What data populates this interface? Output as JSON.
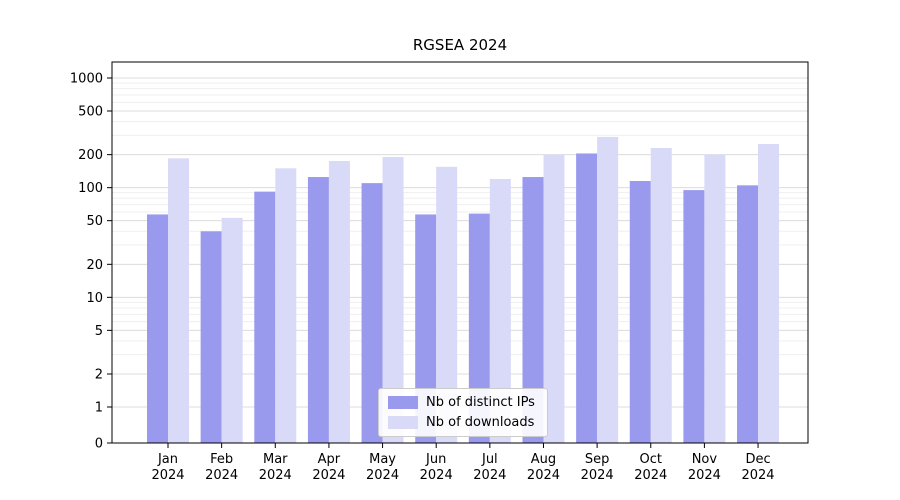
{
  "chart_data": {
    "type": "bar",
    "title": "RGSEA 2024",
    "yscale": "log",
    "ylim": [
      0,
      1400
    ],
    "yticks": [
      0,
      1,
      2,
      5,
      10,
      20,
      50,
      100,
      200,
      500,
      1000
    ],
    "grid": true,
    "legend_position": "lower center",
    "categories": [
      {
        "month": "Jan",
        "year": "2024"
      },
      {
        "month": "Feb",
        "year": "2024"
      },
      {
        "month": "Mar",
        "year": "2024"
      },
      {
        "month": "Apr",
        "year": "2024"
      },
      {
        "month": "May",
        "year": "2024"
      },
      {
        "month": "Jun",
        "year": "2024"
      },
      {
        "month": "Jul",
        "year": "2024"
      },
      {
        "month": "Aug",
        "year": "2024"
      },
      {
        "month": "Sep",
        "year": "2024"
      },
      {
        "month": "Oct",
        "year": "2024"
      },
      {
        "month": "Nov",
        "year": "2024"
      },
      {
        "month": "Dec",
        "year": "2024"
      }
    ],
    "series": [
      {
        "name": "Nb of distinct IPs",
        "color": "#9999ee",
        "values": [
          57,
          40,
          92,
          125,
          110,
          57,
          58,
          125,
          205,
          115,
          95,
          105
        ]
      },
      {
        "name": "Nb of downloads",
        "color": "#d9d9f8",
        "values": [
          185,
          53,
          150,
          175,
          190,
          155,
          120,
          200,
          290,
          230,
          200,
          250
        ]
      }
    ]
  }
}
